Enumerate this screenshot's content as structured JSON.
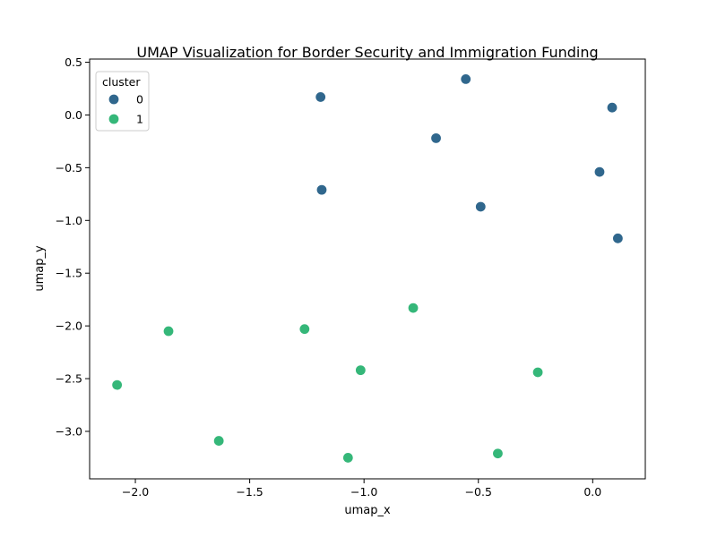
{
  "chart_data": {
    "type": "scatter",
    "title": "UMAP Visualization for Border Security and Immigration Funding",
    "xlabel": "umap_x",
    "ylabel": "umap_y",
    "xlim": [
      -2.2,
      0.23
    ],
    "ylim": [
      -3.45,
      0.53
    ],
    "xticks": [
      -2.0,
      -1.5,
      -1.0,
      -0.5,
      0.0
    ],
    "xtick_labels": [
      "−2.0",
      "−1.5",
      "−1.0",
      "−0.5",
      "0.0"
    ],
    "yticks": [
      0.5,
      0.0,
      -0.5,
      -1.0,
      -1.5,
      -2.0,
      -2.5,
      -3.0
    ],
    "ytick_labels": [
      "0.5",
      "0.0",
      "−0.5",
      "−1.0",
      "−1.5",
      "−2.0",
      "−2.5",
      "−3.0"
    ],
    "grid": false,
    "legend": {
      "title": "cluster",
      "placement": "top-left"
    },
    "series": [
      {
        "name": "0",
        "color": "#30678d",
        "points": [
          [
            -1.19,
            0.17
          ],
          [
            -0.555,
            0.34
          ],
          [
            0.085,
            0.07
          ],
          [
            -0.685,
            -0.22
          ],
          [
            0.03,
            -0.54
          ],
          [
            -1.185,
            -0.71
          ],
          [
            -0.49,
            -0.87
          ],
          [
            0.11,
            -1.17
          ]
        ]
      },
      {
        "name": "1",
        "color": "#35b779",
        "points": [
          [
            -0.785,
            -1.83
          ],
          [
            -1.26,
            -2.03
          ],
          [
            -1.855,
            -2.05
          ],
          [
            -1.015,
            -2.42
          ],
          [
            -0.24,
            -2.44
          ],
          [
            -2.08,
            -2.56
          ],
          [
            -1.635,
            -3.09
          ],
          [
            -1.07,
            -3.25
          ],
          [
            -0.415,
            -3.21
          ]
        ]
      }
    ]
  }
}
